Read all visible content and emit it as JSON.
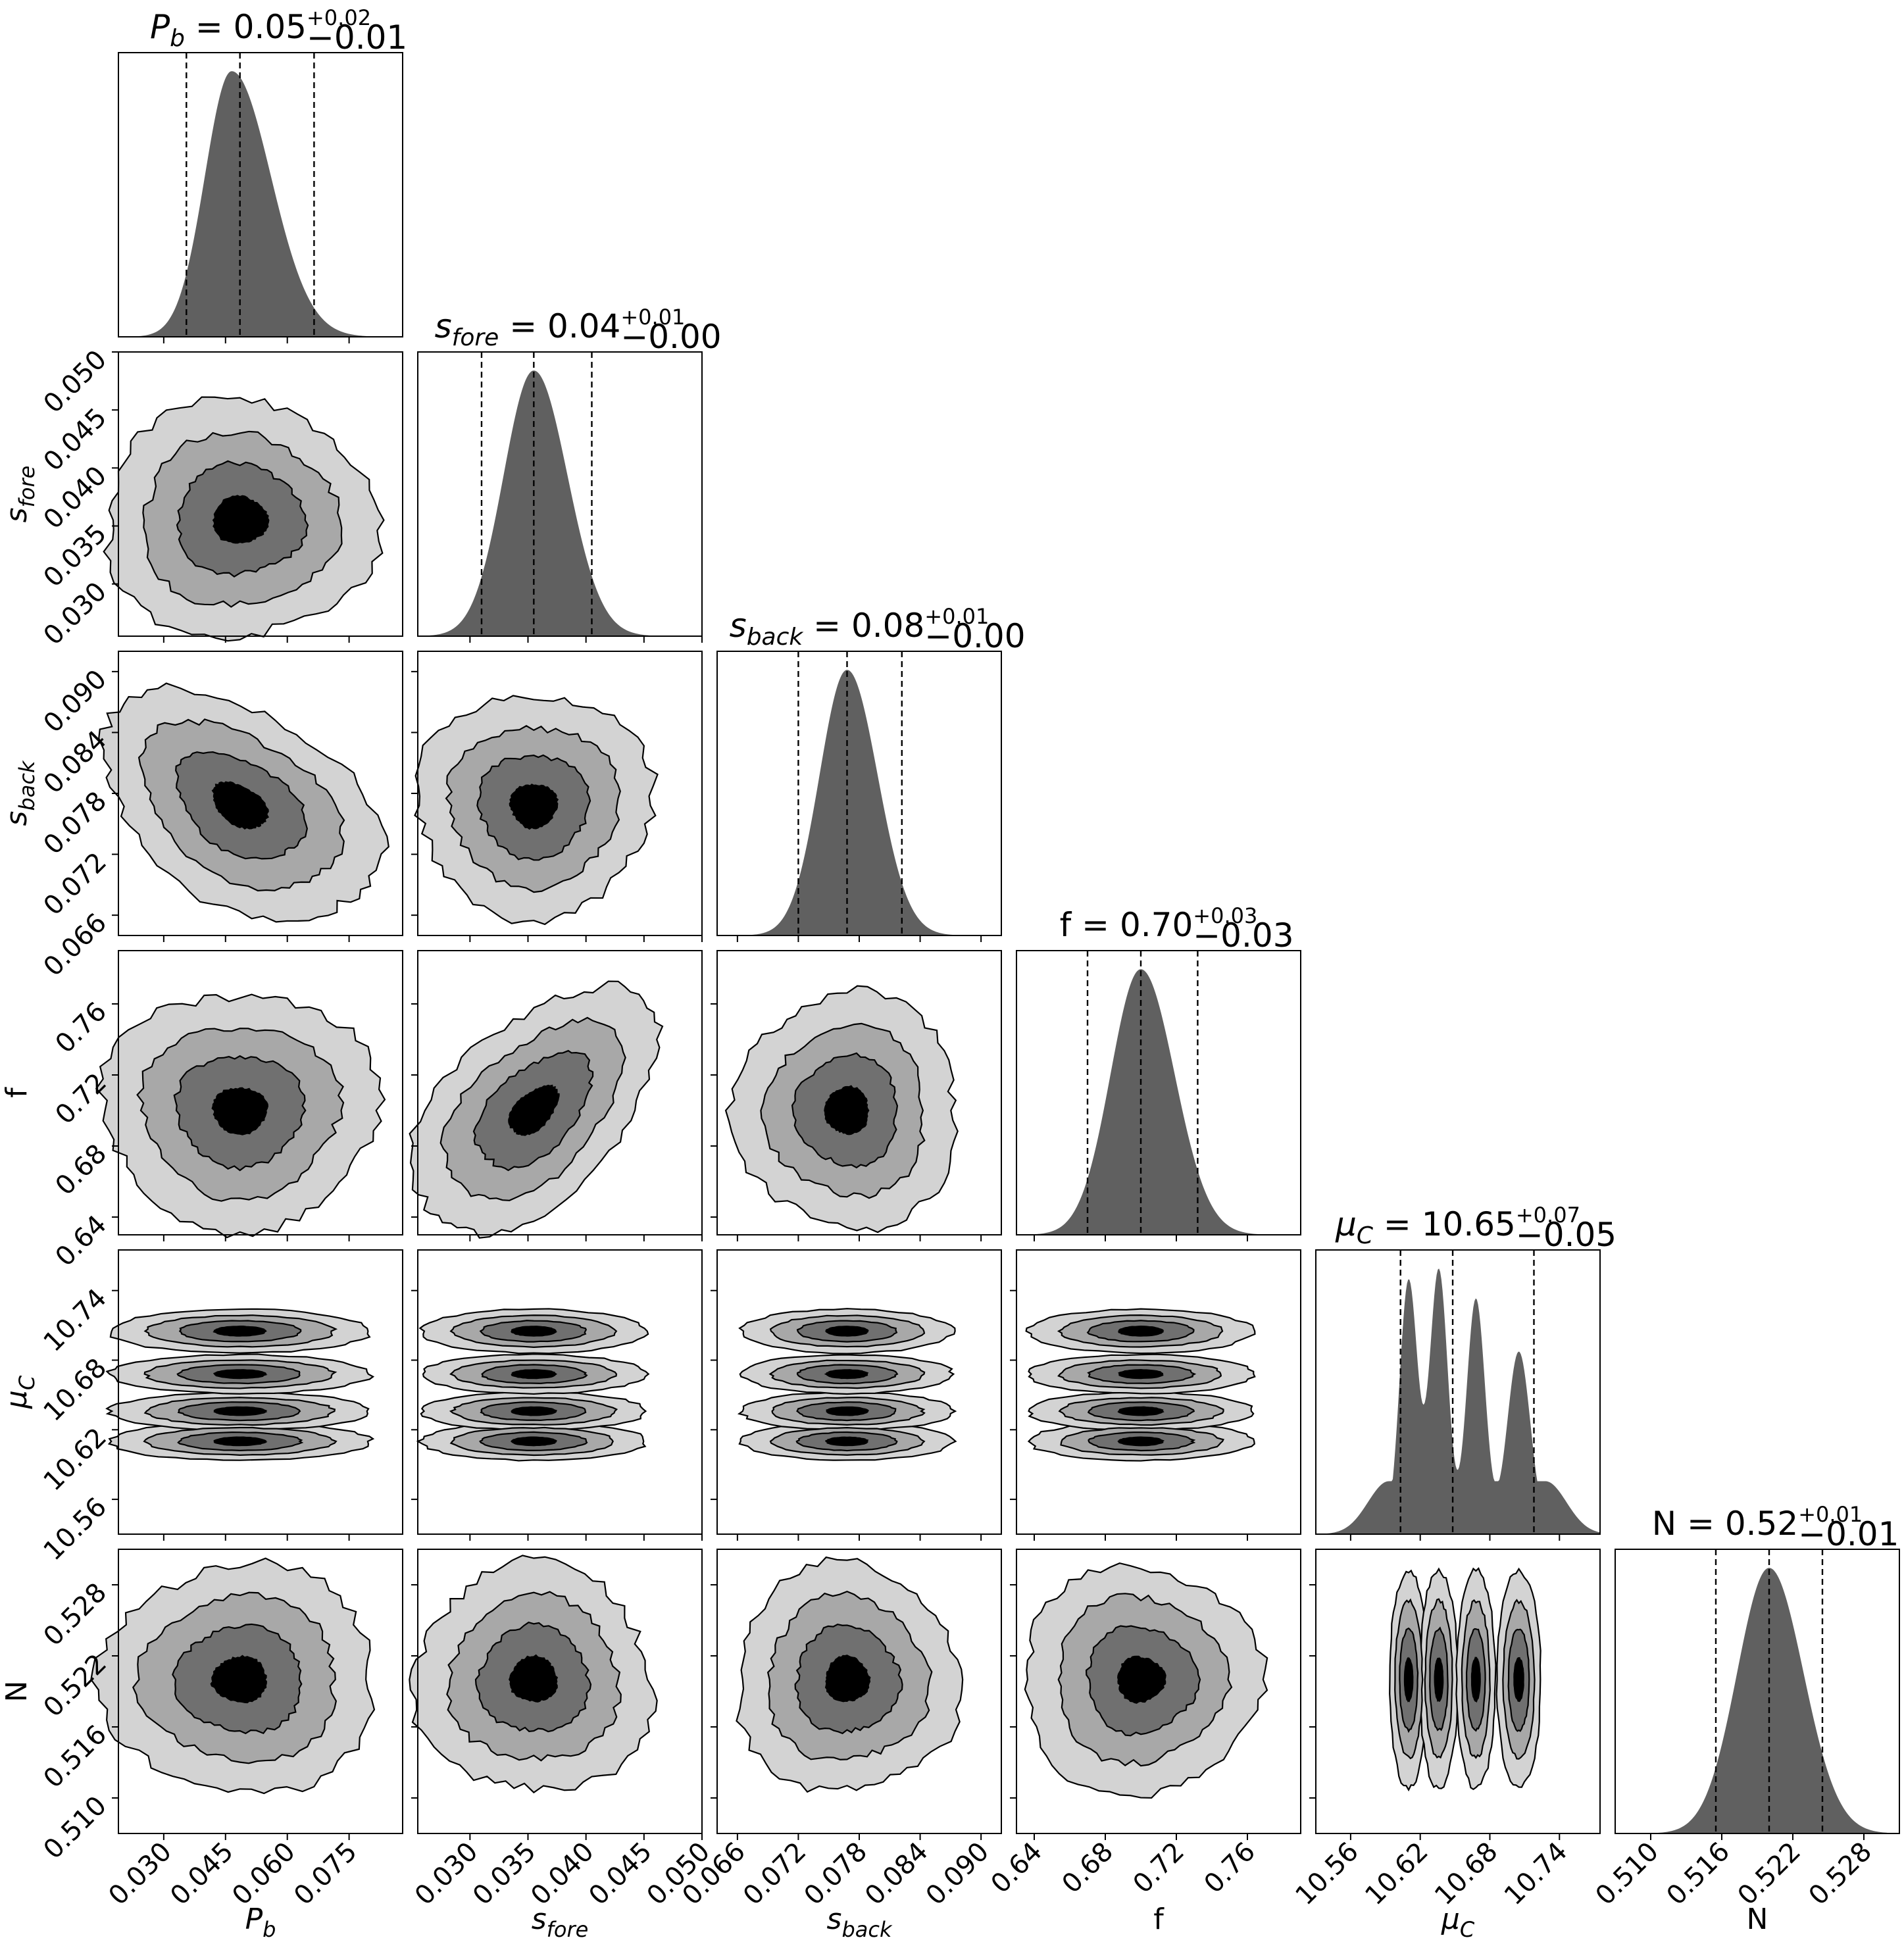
{
  "colors": {
    "background": "#ffffff",
    "histogram_fill": "#606060",
    "contour_levels": [
      "#d3d3d3",
      "#a8a8a8",
      "#707070",
      "#000000"
    ],
    "lines": "#000000"
  },
  "chart_data": {
    "type": "corner",
    "grid": false,
    "parameters": [
      {
        "id": "Pb",
        "symbol": "P",
        "subscript": "b",
        "italic": true,
        "range": [
          0.019,
          0.088
        ],
        "ticks": [
          0.03,
          0.045,
          0.06,
          0.075
        ],
        "tick_labels": [
          "0.030",
          "0.045",
          "0.060",
          "0.075"
        ],
        "title": {
          "prefix": "= 0.05",
          "sup": "+0.02",
          "sub": "−0.01"
        },
        "quantiles": [
          0.0355,
          0.0485,
          0.0665
        ],
        "hist_peak": 0.0465,
        "hist_sigma_left": 0.0065,
        "hist_sigma_right": 0.0095
      },
      {
        "id": "sfore",
        "symbol": "s",
        "subscript": "fore",
        "italic": true,
        "range": [
          0.0255,
          0.05
        ],
        "ticks": [
          0.03,
          0.035,
          0.04,
          0.045,
          0.05
        ],
        "tick_labels": [
          "0.030",
          "0.035",
          "0.040",
          "0.045",
          "0.050"
        ],
        "title": {
          "prefix": "= 0.04",
          "sup": "+0.01",
          "sub": "−0.00"
        },
        "quantiles": [
          0.031,
          0.0355,
          0.0405
        ],
        "hist_peak": 0.0355,
        "hist_sigma_left": 0.0026,
        "hist_sigma_right": 0.0029
      },
      {
        "id": "sback",
        "symbol": "s",
        "subscript": "back",
        "italic": true,
        "range": [
          0.064,
          0.092
        ],
        "ticks": [
          0.066,
          0.072,
          0.078,
          0.084,
          0.09
        ],
        "tick_labels": [
          "0.066",
          "0.072",
          "0.078",
          "0.084",
          "0.090"
        ],
        "title": {
          "prefix": "= 0.08",
          "sup": "+0.01",
          "sub": "−0.00"
        },
        "quantiles": [
          0.072,
          0.0768,
          0.0822
        ],
        "hist_peak": 0.0768,
        "hist_sigma_left": 0.0027,
        "hist_sigma_right": 0.003
      },
      {
        "id": "f",
        "symbol": "f",
        "subscript": "",
        "italic": false,
        "range": [
          0.63,
          0.79
        ],
        "ticks": [
          0.64,
          0.68,
          0.72,
          0.76
        ],
        "tick_labels": [
          "0.64",
          "0.68",
          "0.72",
          "0.76"
        ],
        "title": {
          "prefix": "= 0.70",
          "sup": "+0.03",
          "sub": "−0.03"
        },
        "quantiles": [
          0.67,
          0.7,
          0.732
        ],
        "hist_peak": 0.7,
        "hist_sigma_left": 0.017,
        "hist_sigma_right": 0.019
      },
      {
        "id": "muC",
        "symbol": "μ",
        "subscript": "C",
        "italic": true,
        "range": [
          10.53,
          10.775
        ],
        "ticks": [
          10.56,
          10.62,
          10.68,
          10.74
        ],
        "tick_labels": [
          "10.56",
          "10.62",
          "10.68",
          "10.74"
        ],
        "title": {
          "prefix": "= 10.65",
          "sup": "+0.07",
          "sub": "−0.05"
        },
        "quantiles": [
          10.603,
          10.648,
          10.718
        ],
        "modes": [
          {
            "x": 10.61,
            "height": 0.96,
            "width": 0.0078
          },
          {
            "x": 10.636,
            "height": 1.0,
            "width": 0.0078
          },
          {
            "x": 10.668,
            "height": 0.89,
            "width": 0.008
          },
          {
            "x": 10.705,
            "height": 0.69,
            "width": 0.01
          }
        ],
        "hist_floor": 0.2
      },
      {
        "id": "N",
        "symbol": "N",
        "subscript": "",
        "italic": false,
        "range": [
          0.507,
          0.531
        ],
        "ticks": [
          0.51,
          0.516,
          0.522,
          0.528
        ],
        "tick_labels": [
          "0.510",
          "0.516",
          "0.522",
          "0.528"
        ],
        "title": {
          "prefix": "= 0.52",
          "sup": "+0.01",
          "sub": "−0.01"
        },
        "quantiles": [
          0.5155,
          0.52,
          0.5245
        ],
        "hist_peak": 0.52,
        "hist_sigma_left": 0.0027,
        "hist_sigma_right": 0.0029
      }
    ],
    "y_tick_labels": {
      "sfore": [
        "0.030",
        "0.035",
        "0.040",
        "0.045",
        "0.050"
      ],
      "sback": [
        "0.066",
        "0.072",
        "0.078",
        "0.084",
        "0.090"
      ],
      "f": [
        "0.64",
        "0.68",
        "0.72",
        "0.76"
      ],
      "muC": [
        "10.56",
        "10.62",
        "10.68",
        "10.74"
      ],
      "N": [
        "0.510",
        "0.516",
        "0.522",
        "0.528"
      ]
    },
    "contour_levels_count": 4
  }
}
